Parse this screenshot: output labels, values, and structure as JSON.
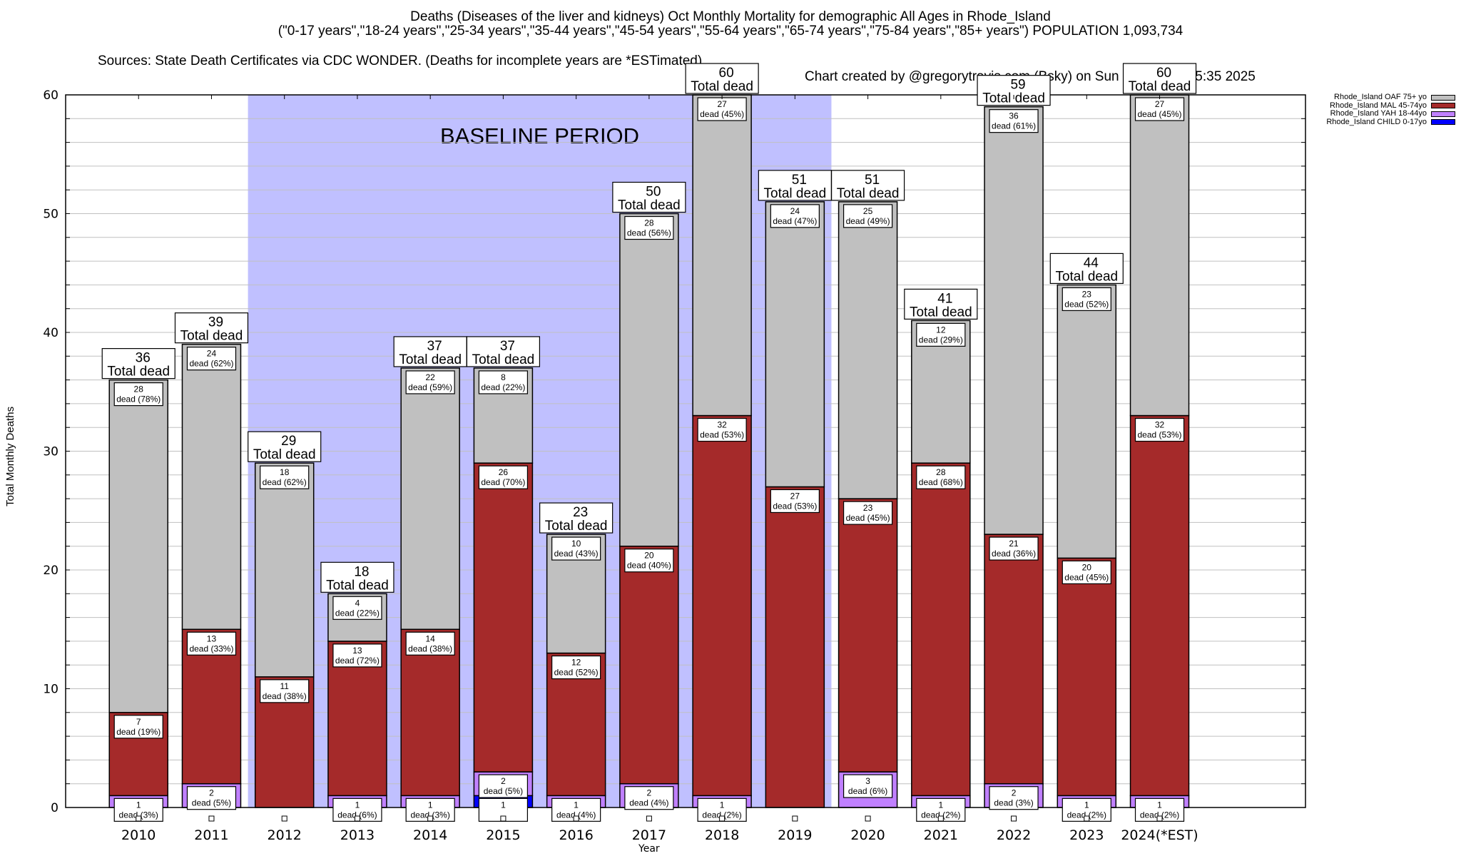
{
  "header": {
    "title": "Deaths (Diseases of the liver and kidneys) Oct Monthly Mortality for demographic All Ages in Rhode_Island",
    "subtitle": "(\"0-17 years\",\"18-24 years\",\"25-34 years\",\"35-44 years\",\"45-54 years\",\"55-64 years\",\"65-74 years\",\"75-84 years\",\"85+ years\") POPULATION 1,093,734",
    "sources": "Sources: State Death Certificates via CDC WONDER. (Deaths for incomplete years are *ESTimated)",
    "credit": "Chart created by @gregorytravis.com (Bsky) on Sun Feb 02 15:35:35 2025"
  },
  "chart_data": {
    "type": "bar",
    "stacked": true,
    "title": "Deaths (Diseases of the liver and kidneys) Oct Monthly Mortality for demographic All Ages in Rhode_Island",
    "xlabel": "Year",
    "ylabel": "Total Monthly Deaths",
    "ylim": [
      0,
      60
    ],
    "yticks": [
      0,
      10,
      20,
      30,
      40,
      50,
      60
    ],
    "grid": true,
    "legend_position": "top-right",
    "categories": [
      "2010",
      "2011",
      "2012",
      "2013",
      "2014",
      "2015",
      "2016",
      "2017",
      "2018",
      "2019",
      "2020",
      "2021",
      "2022",
      "2023",
      "2024(*EST)"
    ],
    "series": [
      {
        "name": "Rhode_Island CHILD 0-17yo",
        "color": "#0000ff",
        "values": [
          0,
          0,
          0,
          0,
          0,
          1,
          0,
          0,
          0,
          0,
          0,
          0,
          0,
          0,
          0
        ]
      },
      {
        "name": "Rhode_Island YAH 18-44yo",
        "color": "#c080ff",
        "values": [
          1,
          2,
          0,
          1,
          1,
          2,
          1,
          2,
          1,
          0,
          3,
          1,
          2,
          1,
          1
        ]
      },
      {
        "name": "Rhode_Island MAL 45-74yo",
        "color": "#a52a2a",
        "values": [
          7,
          13,
          11,
          13,
          14,
          26,
          12,
          20,
          32,
          27,
          23,
          28,
          21,
          20,
          32
        ]
      },
      {
        "name": "Rhode_Island OAF 75+ yo",
        "color": "#c0c0c0",
        "values": [
          28,
          24,
          18,
          4,
          22,
          8,
          10,
          28,
          27,
          24,
          25,
          12,
          36,
          23,
          27
        ]
      }
    ],
    "percent_labels": {
      "Rhode_Island CHILD 0-17yo": [
        "",
        "",
        "",
        "",
        "",
        "",
        "",
        "",
        "",
        "",
        "",
        "",
        "",
        "",
        ""
      ],
      "Rhode_Island YAH 18-44yo": [
        "3%",
        "5%",
        "",
        "6%",
        "3%",
        "5%",
        "4%",
        "4%",
        "2%",
        "",
        "6%",
        "2%",
        "3%",
        "2%",
        "2%"
      ],
      "Rhode_Island MAL 45-74yo": [
        "19%",
        "33%",
        "38%",
        "72%",
        "38%",
        "70%",
        "52%",
        "40%",
        "53%",
        "53%",
        "45%",
        "68%",
        "36%",
        "45%",
        "53%"
      ],
      "Rhode_Island OAF 75+ yo": [
        "78%",
        "62%",
        "62%",
        "22%",
        "59%",
        "22%",
        "43%",
        "56%",
        "45%",
        "47%",
        "49%",
        "29%",
        "61%",
        "52%",
        "45%"
      ]
    },
    "totals": [
      36,
      39,
      29,
      18,
      37,
      37,
      23,
      50,
      60,
      51,
      51,
      41,
      59,
      44,
      60
    ],
    "total_label_suffix": "Total dead",
    "segment_label_suffix": "dead",
    "annotation": {
      "text": "BASELINE PERIOD",
      "start_category": "2012",
      "end_category": "2019",
      "color": "#c0c0ff"
    }
  },
  "legend": {
    "items": [
      {
        "label": "Rhode_Island OAF 75+ yo",
        "color": "#c0c0c0"
      },
      {
        "label": "Rhode_Island MAL 45-74yo",
        "color": "#a52a2a"
      },
      {
        "label": "Rhode_Island YAH 18-44yo",
        "color": "#c080ff"
      },
      {
        "label": "Rhode_Island CHILD 0-17yo",
        "color": "#0000ff"
      }
    ]
  }
}
